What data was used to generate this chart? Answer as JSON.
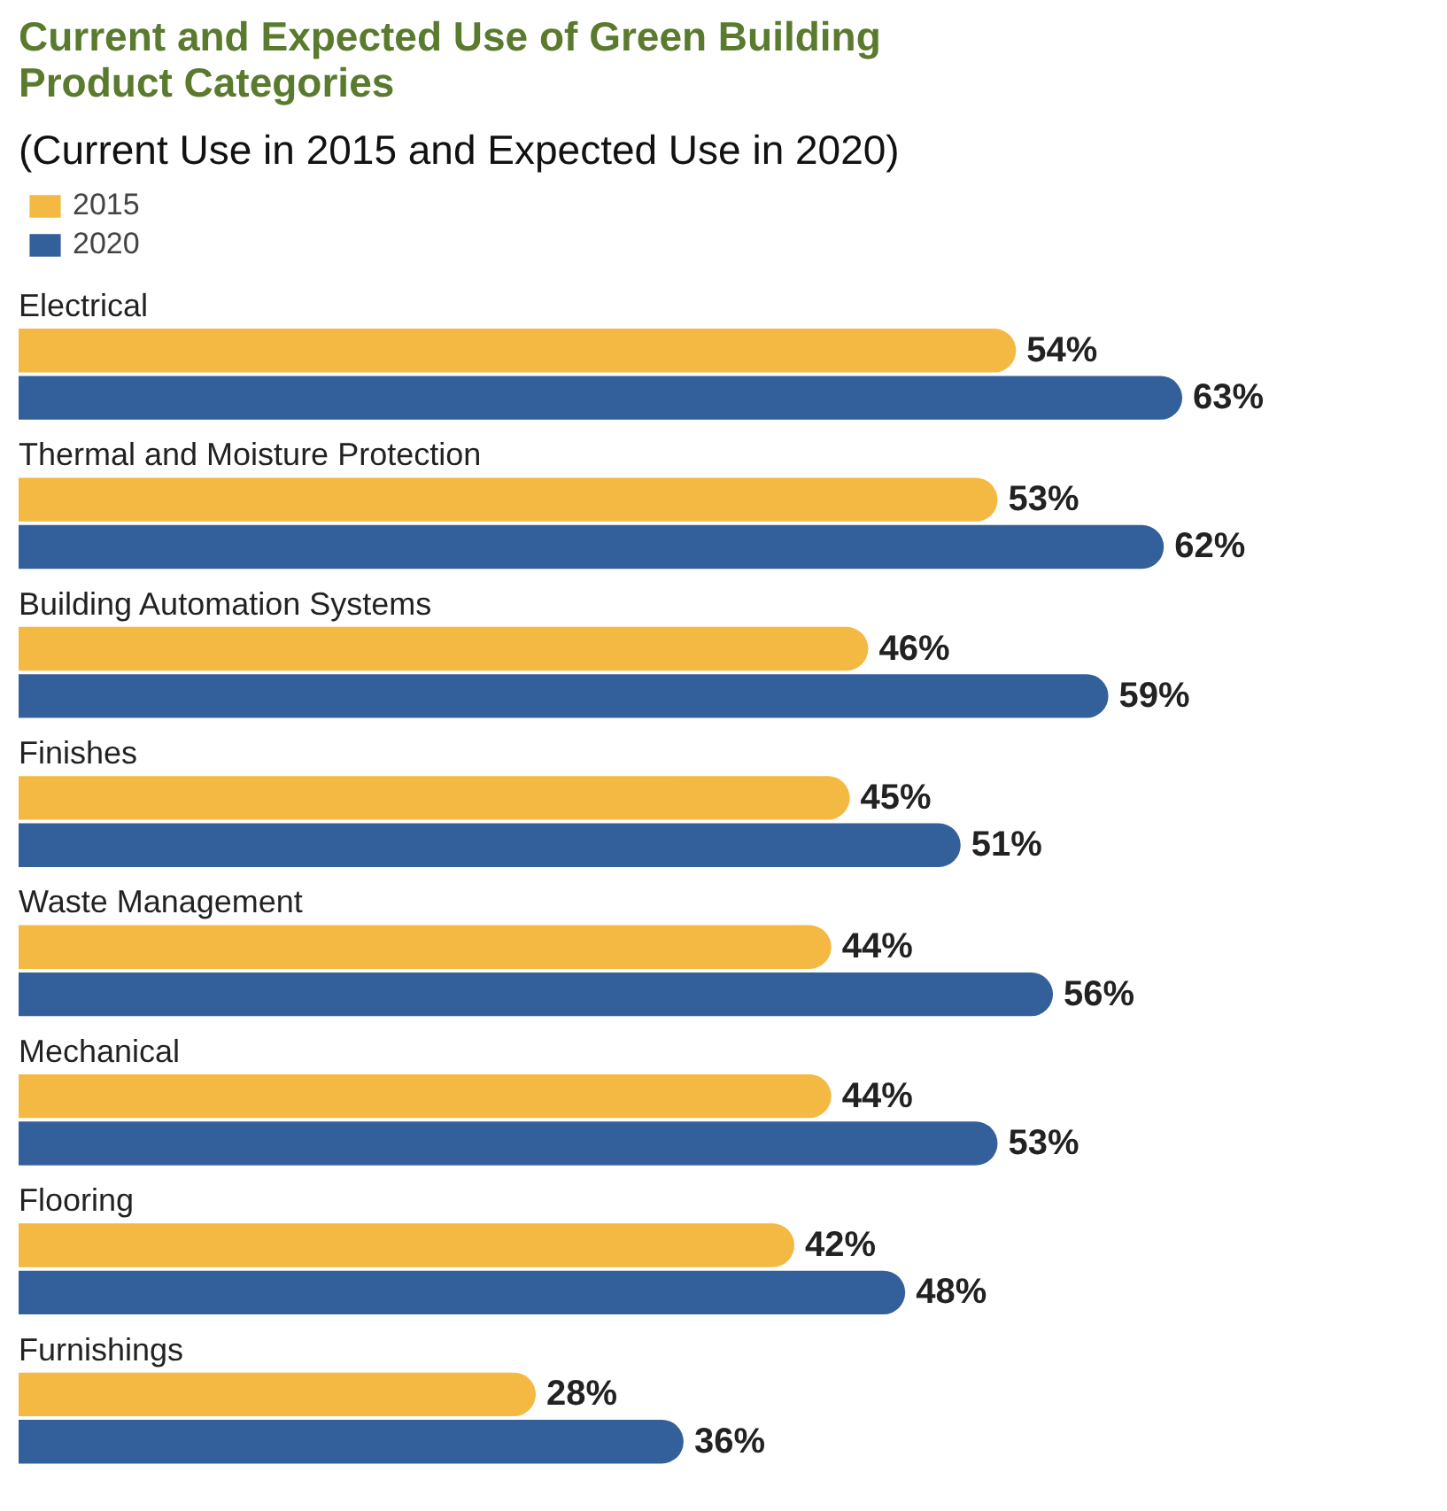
{
  "chart_data": {
    "type": "bar",
    "orientation": "horizontal",
    "title": "Current and Expected Use of Green Building Product Categories",
    "subtitle": "(Current Use in 2015 and Expected Use in 2020)",
    "categories": [
      "Electrical",
      "Thermal and Moisture Protection",
      "Building Automation Systems",
      "Finishes",
      "Waste Management",
      "Mechanical",
      "Flooring",
      "Furnishings"
    ],
    "series": [
      {
        "name": "2015",
        "color": "#f4b942",
        "values": [
          54,
          53,
          46,
          45,
          44,
          44,
          42,
          28
        ],
        "value_labels": [
          "54%",
          "53%",
          "46%",
          "45%",
          "44%",
          "44%",
          "42%",
          "28%"
        ]
      },
      {
        "name": "2020",
        "color": "#33609a",
        "values": [
          63,
          62,
          59,
          51,
          56,
          53,
          48,
          36
        ],
        "value_labels": [
          "63%",
          "62%",
          "59%",
          "51%",
          "56%",
          "53%",
          "48%",
          "36%"
        ]
      }
    ],
    "legend": "top left",
    "grid": false,
    "tick_labels": false
  }
}
